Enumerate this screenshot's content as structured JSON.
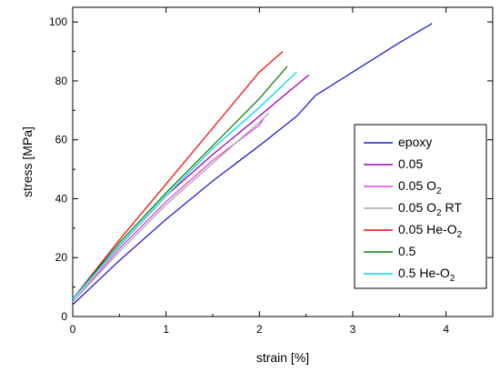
{
  "chart_data": {
    "type": "line",
    "xlabel": "strain [%]",
    "ylabel": "stress [MPa]",
    "xlim": [
      0,
      4.5
    ],
    "ylim": [
      0,
      105
    ],
    "xticks": [
      0,
      1,
      2,
      3,
      4
    ],
    "yticks": [
      0,
      20,
      40,
      60,
      80,
      100
    ],
    "grid": false,
    "legend_position": "bottom-right",
    "series": [
      {
        "name": "epoxy",
        "color": "#2020d0",
        "x": [
          0,
          0.5,
          1,
          1.5,
          2,
          2.4,
          2.6,
          3,
          3.5,
          3.85
        ],
        "y": [
          4,
          19,
          33,
          46,
          58,
          68,
          75,
          83,
          93,
          99.5
        ]
      },
      {
        "name": "0.05",
        "color": "#a000c0",
        "x": [
          0,
          0.5,
          1,
          1.5,
          2,
          2.3,
          2.53
        ],
        "y": [
          6,
          24,
          41,
          55,
          68,
          76,
          82
        ]
      },
      {
        "name": "0.05 O2",
        "name_main": "0.05 O",
        "name_sub": "2",
        "color": "#e040e0",
        "x": [
          0,
          0.5,
          1,
          1.5,
          2,
          2.05
        ],
        "y": [
          5,
          23,
          39,
          53,
          65,
          67.5
        ]
      },
      {
        "name": "0.05 O2 RT",
        "name_main": "0.05 O",
        "name_sub": "2",
        "name_tail": " RT",
        "color": "#a8a8a8",
        "x": [
          0,
          0.5,
          1,
          1.5,
          2,
          2.1
        ],
        "y": [
          5,
          22,
          38,
          52,
          66,
          69
        ]
      },
      {
        "name": "0.05 He-O2",
        "name_main": "0.05 He-O",
        "name_sub": "2",
        "color": "#ee1111",
        "x": [
          0,
          0.5,
          1,
          1.5,
          2,
          2.25
        ],
        "y": [
          6,
          26,
          45,
          64,
          83,
          90
        ]
      },
      {
        "name": "0.5",
        "name_main": "0.5",
        "color": "#108010",
        "x": [
          0,
          0.5,
          1,
          1.5,
          2,
          2.3
        ],
        "y": [
          6,
          25,
          42,
          58,
          74,
          85
        ]
      },
      {
        "name": "0.5 He-O2",
        "name_main": "0.5 He-O",
        "name_sub": "2",
        "color": "#00d8e8",
        "x": [
          0,
          0.5,
          1,
          1.5,
          2,
          2.4
        ],
        "y": [
          6,
          24,
          41,
          57,
          71,
          83
        ]
      }
    ]
  }
}
